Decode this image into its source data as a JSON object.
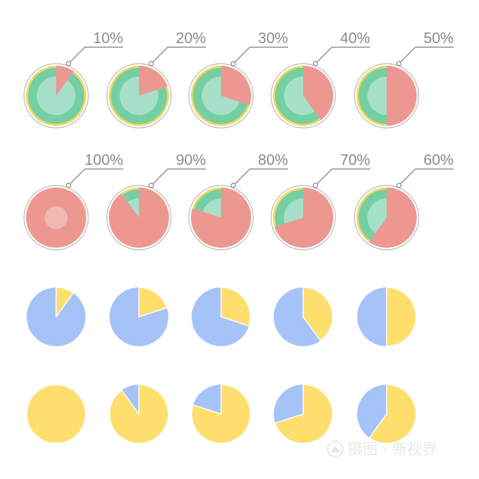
{
  "colors": {
    "green_outer": "#74cfa4",
    "green_inner": "#a6e0c8",
    "red_outer": "#ec9891",
    "red_inner": "#f3b7b2",
    "gold_ring": "#f1d760",
    "blue": "#a6c3f8",
    "yellow": "#fedf6d",
    "rim": "#b8b8b8",
    "leader": "#8f8f8f",
    "label_text": "#8a8a8a"
  },
  "chart_data": [
    {
      "type": "pie",
      "style": "ringed-with-callout",
      "categories": [
        "10%",
        "20%",
        "30%",
        "40%",
        "50%"
      ],
      "series": [
        {
          "values": [
            10,
            20,
            30,
            40,
            50
          ]
        }
      ]
    },
    {
      "type": "pie",
      "style": "ringed-with-callout",
      "categories": [
        "100%",
        "90%",
        "80%",
        "70%",
        "60%"
      ],
      "series": [
        {
          "values": [
            100,
            90,
            80,
            70,
            60
          ]
        }
      ]
    },
    {
      "type": "pie",
      "style": "flat",
      "series": [
        {
          "values": [
            10,
            20,
            30,
            40,
            50
          ]
        }
      ]
    },
    {
      "type": "pie",
      "style": "flat",
      "series": [
        {
          "values": [
            100,
            90,
            80,
            70,
            60
          ]
        }
      ]
    }
  ],
  "watermark": {
    "text": "摄图 · 新视界"
  }
}
